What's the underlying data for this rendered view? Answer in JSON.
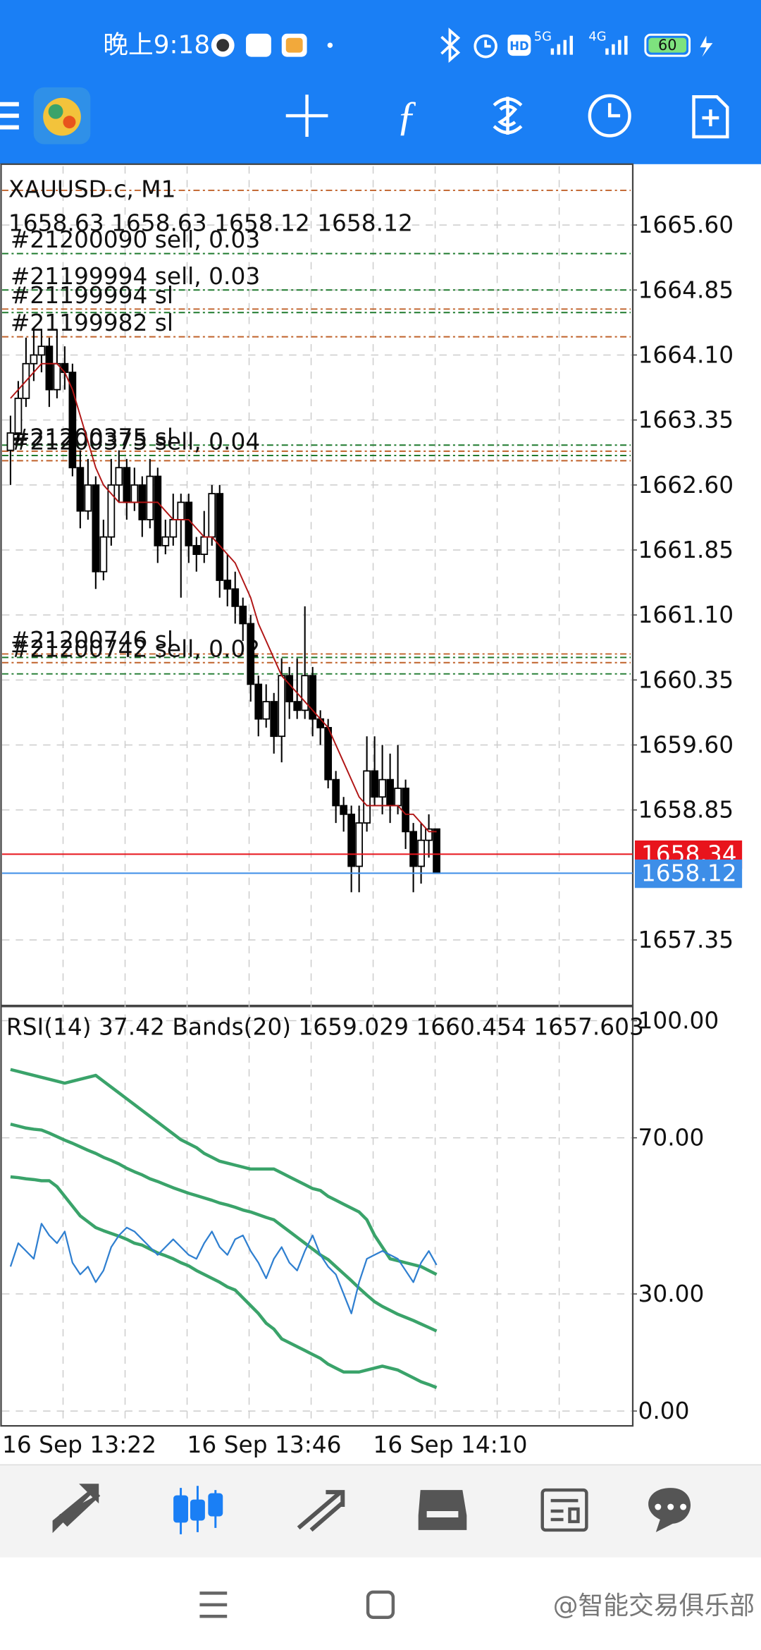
{
  "status_bar": {
    "time": "晚上9:18",
    "hd": "HD",
    "net1": "5G",
    "net2": "4G",
    "battery": "60"
  },
  "chart_data": [
    {
      "type": "candlestick",
      "title": "XAUUSD.c, M1",
      "subtitle": "1658.63 1658.63 1658.12 1658.12",
      "up_color": "#ffffff",
      "down_color": "#000000",
      "ohlc": [
        [
          1663.0,
          1663.4,
          1662.6,
          1663.2
        ],
        [
          1663.2,
          1663.8,
          1663.1,
          1663.6
        ],
        [
          1663.6,
          1664.3,
          1663.5,
          1664.0
        ],
        [
          1664.0,
          1664.4,
          1663.8,
          1664.1
        ],
        [
          1664.1,
          1664.4,
          1663.9,
          1664.2
        ],
        [
          1664.2,
          1664.3,
          1663.5,
          1663.7
        ],
        [
          1663.7,
          1664.4,
          1663.6,
          1664.0
        ],
        [
          1664.0,
          1664.2,
          1663.7,
          1663.9
        ],
        [
          1663.9,
          1664.0,
          1662.7,
          1662.8
        ],
        [
          1662.8,
          1663.0,
          1662.1,
          1662.3
        ],
        [
          1662.3,
          1662.9,
          1662.2,
          1662.6
        ],
        [
          1662.6,
          1662.7,
          1661.4,
          1661.6
        ],
        [
          1661.6,
          1662.2,
          1661.5,
          1662.0
        ],
        [
          1662.0,
          1662.9,
          1661.9,
          1662.6
        ],
        [
          1662.6,
          1663.0,
          1662.4,
          1662.8
        ],
        [
          1662.8,
          1662.9,
          1662.2,
          1662.4
        ],
        [
          1662.4,
          1662.8,
          1662.3,
          1662.6
        ],
        [
          1662.6,
          1662.7,
          1662.0,
          1662.2
        ],
        [
          1662.2,
          1662.9,
          1662.1,
          1662.7
        ],
        [
          1662.7,
          1662.8,
          1661.7,
          1661.9
        ],
        [
          1661.9,
          1662.2,
          1661.8,
          1662.0
        ],
        [
          1662.0,
          1662.5,
          1661.9,
          1662.2
        ],
        [
          1662.2,
          1662.5,
          1661.3,
          1662.4
        ],
        [
          1662.4,
          1662.5,
          1661.7,
          1661.9
        ],
        [
          1661.9,
          1662.0,
          1661.6,
          1661.8
        ],
        [
          1661.8,
          1662.3,
          1661.7,
          1662.0
        ],
        [
          1662.0,
          1662.6,
          1661.9,
          1662.5
        ],
        [
          1662.5,
          1662.6,
          1661.3,
          1661.5
        ],
        [
          1661.5,
          1661.8,
          1661.2,
          1661.4
        ],
        [
          1661.4,
          1661.6,
          1661.0,
          1661.2
        ],
        [
          1661.2,
          1661.3,
          1660.8,
          1661.0
        ],
        [
          1661.0,
          1661.1,
          1660.1,
          1660.3
        ],
        [
          1660.3,
          1660.4,
          1659.7,
          1659.9
        ],
        [
          1659.9,
          1660.3,
          1659.8,
          1660.1
        ],
        [
          1660.1,
          1660.2,
          1659.5,
          1659.7
        ],
        [
          1659.7,
          1660.6,
          1659.4,
          1660.4
        ],
        [
          1660.4,
          1660.5,
          1659.9,
          1660.1
        ],
        [
          1660.1,
          1660.6,
          1659.9,
          1660.0
        ],
        [
          1660.0,
          1661.2,
          1659.9,
          1660.4
        ],
        [
          1660.4,
          1660.5,
          1659.7,
          1659.9
        ],
        [
          1659.9,
          1660.0,
          1659.6,
          1659.8
        ],
        [
          1659.8,
          1659.9,
          1659.1,
          1659.2
        ],
        [
          1659.2,
          1659.3,
          1658.7,
          1658.9
        ],
        [
          1658.9,
          1659.0,
          1658.6,
          1658.8
        ],
        [
          1658.8,
          1658.9,
          1657.9,
          1658.2
        ],
        [
          1658.2,
          1658.9,
          1657.9,
          1658.7
        ],
        [
          1658.7,
          1659.7,
          1658.6,
          1659.3
        ],
        [
          1659.3,
          1659.7,
          1658.9,
          1659.0
        ],
        [
          1659.0,
          1659.6,
          1658.8,
          1659.2
        ],
        [
          1659.2,
          1659.5,
          1658.7,
          1658.9
        ],
        [
          1658.9,
          1659.6,
          1658.8,
          1659.1
        ],
        [
          1659.1,
          1659.2,
          1658.4,
          1658.6
        ],
        [
          1658.6,
          1658.7,
          1657.9,
          1658.2
        ],
        [
          1658.2,
          1658.7,
          1658.0,
          1658.5
        ],
        [
          1658.5,
          1658.8,
          1658.3,
          1658.63
        ],
        [
          1658.63,
          1658.63,
          1658.12,
          1658.12
        ]
      ],
      "overlay": {
        "color": "#b01515",
        "values": [
          1663.6,
          1663.7,
          1663.8,
          1663.9,
          1664.0,
          1664.0,
          1664.0,
          1663.9,
          1663.7,
          1663.4,
          1663.1,
          1662.8,
          1662.6,
          1662.5,
          1662.4,
          1662.4,
          1662.4,
          1662.4,
          1662.4,
          1662.4,
          1662.3,
          1662.2,
          1662.2,
          1662.2,
          1662.1,
          1662.0,
          1662.0,
          1661.9,
          1661.8,
          1661.7,
          1661.5,
          1661.3,
          1661.0,
          1660.8,
          1660.6,
          1660.4,
          1660.3,
          1660.2,
          1660.1,
          1660.0,
          1659.9,
          1659.8,
          1659.6,
          1659.4,
          1659.2,
          1659.0,
          1658.9,
          1658.9,
          1658.9,
          1658.9,
          1658.9,
          1658.8,
          1658.8,
          1658.7,
          1658.6,
          1658.6
        ]
      },
      "order_lines": [
        {
          "value": 1666.0,
          "color": "#c0622a"
        },
        {
          "value": 1665.27,
          "color": "#1f7a2e",
          "label": "#21200090 sell, 0.03"
        },
        {
          "value": 1664.85,
          "color": "#1f7a2e",
          "label": "#21199994 sell, 0.03"
        },
        {
          "value": 1664.63,
          "color": "#c0622a",
          "label": "#21199994 sl"
        },
        {
          "value": 1664.59,
          "color": "#1f7a2e"
        },
        {
          "value": 1664.31,
          "color": "#c0622a",
          "label": "#21199982 sl"
        },
        {
          "value": 1663.06,
          "color": "#1f7a2e"
        },
        {
          "value": 1662.99,
          "color": "#c0622a",
          "label": "#21200375 sl"
        },
        {
          "value": 1662.94,
          "color": "#1f7a2e",
          "label": "#21200375 sell, 0.04"
        },
        {
          "value": 1662.88,
          "color": "#c0622a"
        },
        {
          "value": 1660.65,
          "color": "#c0622a",
          "label": "#21200746 sl"
        },
        {
          "value": 1660.61,
          "color": "#1f7a2e"
        },
        {
          "value": 1660.55,
          "color": "#c0622a",
          "label": "#21200742 sell, 0.02"
        },
        {
          "value": 1660.42,
          "color": "#1f7a2e"
        }
      ],
      "price_lines": [
        {
          "value": 1658.34,
          "color": "#e8141c"
        },
        {
          "value": 1658.12,
          "color": "#3d8ee8"
        }
      ],
      "ylim": [
        1656.6,
        1666.29
      ],
      "yticks": [
        {
          "value": 1665.6,
          "label": "1665.60"
        },
        1664.85,
        {
          "value": 1664.1,
          "label": "1664.10"
        },
        1663.35,
        {
          "value": 1662.6,
          "label": "1662.60"
        },
        1661.85,
        {
          "value": 1661.1,
          "label": "1661.10"
        },
        1660.35,
        {
          "value": 1659.6,
          "label": "1659.60"
        },
        1658.85,
        1657.35
      ],
      "grid": true
    },
    {
      "type": "line",
      "title": "RSI(14) 37.42 Bands(20) 1659.029 1660.454 1657.603",
      "series": [
        {
          "color": "#2f7fd0",
          "width": 1.5,
          "values": [
            37,
            43,
            41,
            39,
            48,
            45,
            43,
            46,
            38,
            35,
            37,
            33,
            36,
            42,
            45,
            47,
            46,
            44,
            42,
            40,
            42,
            44,
            42,
            40,
            39,
            43,
            46,
            42,
            40,
            44,
            45,
            41,
            38,
            34,
            39,
            42,
            38,
            36,
            41,
            45,
            40,
            37,
            35,
            30,
            25,
            33,
            39,
            40,
            41,
            40,
            39,
            36,
            33,
            38,
            41,
            37.42
          ]
        },
        {
          "color": "#3aa36a",
          "width": 3,
          "values": [
            87.5,
            87,
            86.5,
            86,
            85.5,
            85,
            84.5,
            84,
            84.5,
            85,
            85.5,
            86,
            84.5,
            83,
            81.5,
            80,
            78.5,
            77,
            75.5,
            74,
            72.5,
            71,
            69.5,
            68.5,
            67.5,
            66,
            65,
            64,
            63.5,
            63,
            62.5,
            62,
            62,
            62,
            62,
            61,
            60,
            59,
            58,
            57,
            56.5,
            55,
            54,
            53,
            52,
            51,
            49,
            45,
            42,
            39,
            38.5,
            38,
            37.5,
            37,
            36,
            35
          ]
        },
        {
          "color": "#3aa36a",
          "width": 3,
          "values": [
            73.5,
            73,
            72.5,
            72.2,
            72,
            71.2,
            70.3,
            69.4,
            68.6,
            67.7,
            66.8,
            66,
            65,
            64.2,
            63.3,
            62.2,
            61.3,
            60.5,
            59.5,
            58.8,
            58,
            57.2,
            56.5,
            55.8,
            55.2,
            54.6,
            54,
            53.3,
            52.8,
            52.2,
            51.5,
            51,
            50.3,
            49.6,
            49,
            47.5,
            46,
            44.5,
            43,
            41.5,
            40,
            38.8,
            37,
            35.2,
            33.4,
            31.5,
            29.7,
            28,
            26.8,
            25.8,
            24.8,
            24,
            23.2,
            22.3,
            21.4,
            20.5
          ]
        },
        {
          "color": "#3aa36a",
          "width": 3,
          "values": [
            60,
            59.8,
            59.5,
            59.3,
            59,
            59,
            57.5,
            55,
            52.5,
            50,
            48.5,
            47,
            46.2,
            45.5,
            44.8,
            44,
            43,
            42.5,
            41.5,
            40.5,
            39.8,
            39,
            38,
            37.2,
            36,
            35,
            34,
            33,
            31.8,
            31,
            29,
            27,
            25,
            22.5,
            21,
            18.5,
            17.5,
            16.5,
            15.5,
            14.5,
            13.5,
            12,
            11,
            10,
            10,
            10,
            10.5,
            11,
            11.5,
            11,
            10.5,
            9.5,
            8.5,
            7.5,
            6.8,
            6
          ]
        }
      ],
      "ylim": [
        -3.8,
        103.5
      ],
      "yticks": [
        {
          "value": 100,
          "label": "100.00"
        },
        {
          "value": 70,
          "label": "70.00"
        },
        {
          "value": 30,
          "label": "30.00"
        },
        {
          "value": 0,
          "label": "0.00"
        }
      ],
      "grid": true
    }
  ],
  "time_axis": [
    "16 Sep 13:22",
    "16 Sep 13:46",
    "16 Sep 14:10"
  ],
  "watermark": "@智能交易俱乐部"
}
